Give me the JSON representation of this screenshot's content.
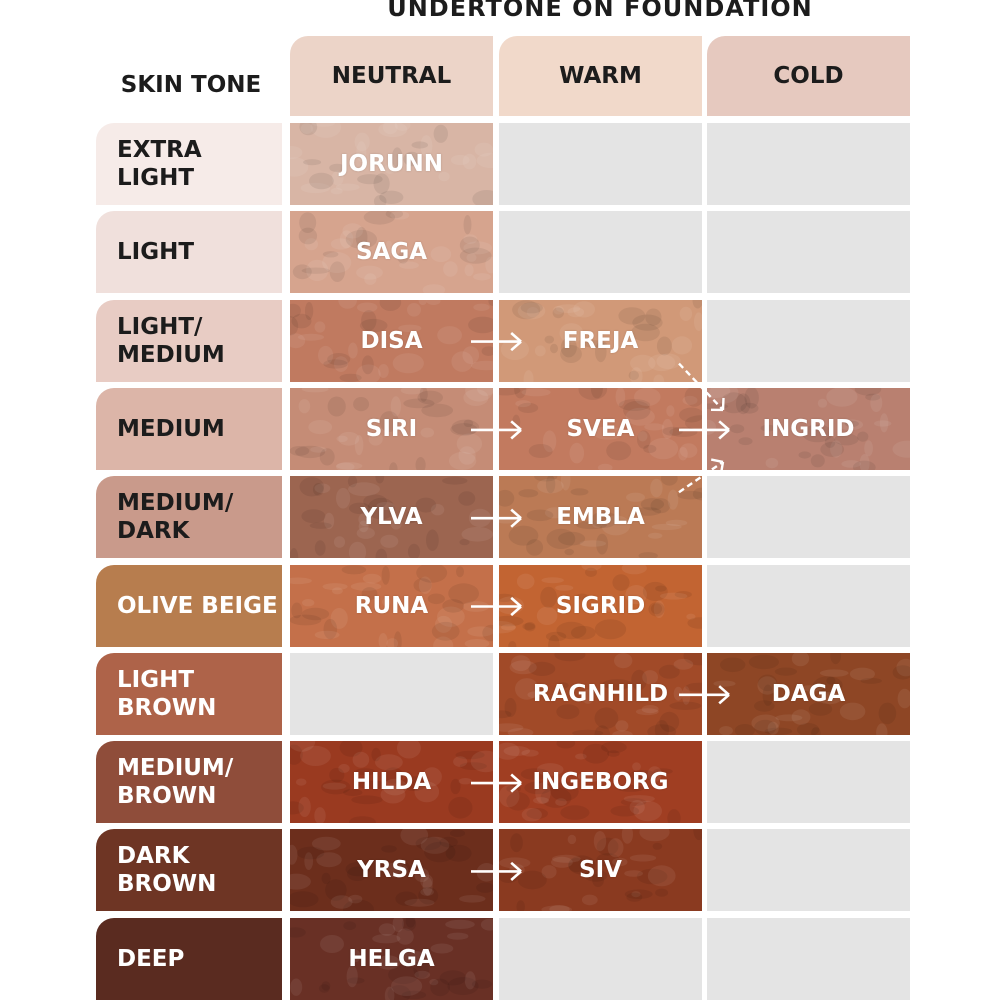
{
  "title": "UNDERTONE ON FOUNDATION",
  "skin_tone_header": "SKIN TONE",
  "columns": [
    {
      "label": "NEUTRAL",
      "color": "#ecd4c8"
    },
    {
      "label": "WARM",
      "color": "#f1d9ca"
    },
    {
      "label": "COLD",
      "color": "#e6c9bf"
    }
  ],
  "rows": [
    {
      "label": "EXTRA LIGHT",
      "color": "#f6ebe8",
      "text_color": "#1c1c1c",
      "cells": [
        {
          "name": "JORUNN",
          "color": "#d8b5a5"
        },
        null,
        null
      ]
    },
    {
      "label": "LIGHT",
      "color": "#f0e0dc",
      "text_color": "#1c1c1c",
      "cells": [
        {
          "name": "SAGA",
          "color": "#d6a48e"
        },
        null,
        null
      ]
    },
    {
      "label": "LIGHT/\nMEDIUM",
      "color": "#e8ccc4",
      "text_color": "#1c1c1c",
      "cells": [
        {
          "name": "DISA",
          "color": "#c07a60"
        },
        {
          "name": "FREJA",
          "color": "#d19978"
        },
        null
      ]
    },
    {
      "label": "MEDIUM",
      "color": "#dcb5a8",
      "text_color": "#1c1c1c",
      "cells": [
        {
          "name": "SIRI",
          "color": "#c58c76"
        },
        {
          "name": "SVEA",
          "color": "#c27a5f"
        },
        {
          "name": "INGRID",
          "color": "#b98070"
        }
      ]
    },
    {
      "label": "MEDIUM/\nDARK",
      "color": "#c99a8b",
      "text_color": "#1c1c1c",
      "cells": [
        {
          "name": "YLVA",
          "color": "#9c6550"
        },
        {
          "name": "EMBLA",
          "color": "#bb7a55"
        },
        null
      ]
    },
    {
      "label": "OLIVE BEIGE",
      "color": "#b77d4e",
      "text_color": "#ffffff",
      "cells": [
        {
          "name": "RUNA",
          "color": "#c4704a"
        },
        {
          "name": "SIGRID",
          "color": "#c26432"
        },
        null
      ]
    },
    {
      "label": "LIGHT BROWN",
      "color": "#ae6349",
      "text_color": "#ffffff",
      "cells": [
        null,
        {
          "name": "RAGNHILD",
          "color": "#a14a28"
        },
        {
          "name": "DAGA",
          "color": "#8e4625"
        }
      ]
    },
    {
      "label": "MEDIUM/\nBROWN",
      "color": "#8f4d3a",
      "text_color": "#ffffff",
      "cells": [
        {
          "name": "HILDA",
          "color": "#9a3a20"
        },
        {
          "name": "INGEBORG",
          "color": "#a03e22"
        },
        null
      ]
    },
    {
      "label": "DARK BROWN",
      "color": "#6e3524",
      "text_color": "#ffffff",
      "cells": [
        {
          "name": "YRSA",
          "color": "#6c2e1c"
        },
        {
          "name": "SIV",
          "color": "#8a3a20"
        },
        null
      ]
    },
    {
      "label": "DEEP",
      "color": "#5a2b20",
      "text_color": "#ffffff",
      "cells": [
        {
          "name": "HELGA",
          "color": "#693025"
        },
        null,
        null
      ]
    }
  ],
  "transitions": [
    {
      "row": 2,
      "from": 0,
      "to": 1
    },
    {
      "row": 3,
      "from": 0,
      "to": 1
    },
    {
      "row": 3,
      "from": 1,
      "to": 2
    },
    {
      "row": 4,
      "from": 0,
      "to": 1
    },
    {
      "row": 5,
      "from": 0,
      "to": 1
    },
    {
      "row": 6,
      "from": 1,
      "to": 2
    },
    {
      "row": 7,
      "from": 0,
      "to": 1
    },
    {
      "row": 8,
      "from": 0,
      "to": 1
    }
  ],
  "diagonal_transitions": [
    {
      "from_row": 2,
      "from_col": 1,
      "to_row": 3,
      "to_col": 2
    },
    {
      "from_row": 4,
      "from_col": 1,
      "to_row": 3,
      "to_col": 2
    }
  ]
}
